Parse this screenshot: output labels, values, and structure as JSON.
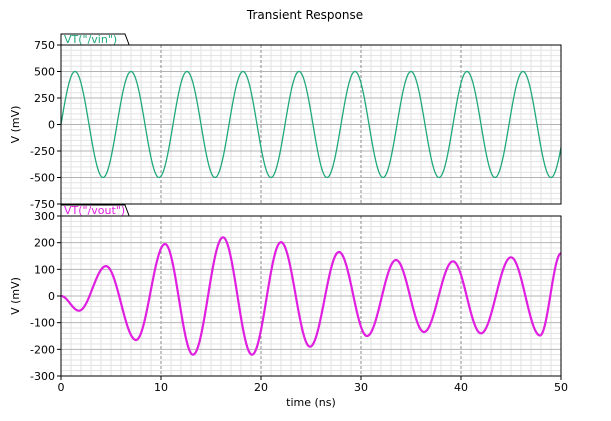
{
  "chart_data": {
    "type": "line",
    "title": "Transient Response",
    "xlabel": "time (ns)",
    "x_ticks": [
      "0",
      "10",
      "20",
      "30",
      "40",
      "50"
    ],
    "xlim": [
      0,
      50
    ],
    "grid": true,
    "panels": [
      {
        "ylabel": "V (mV)",
        "ylim": [
          -750,
          750
        ],
        "y_ticks": [
          "750",
          "500",
          "250",
          "0",
          "-250",
          "-500",
          "-750"
        ],
        "series": [
          {
            "name": "VT(\"/vin\")",
            "color": "#1fa97a",
            "kind": "sine",
            "amplitude_mV": 500,
            "period_ns": 5.6,
            "phase_start": 0,
            "dc_offset_mV": 0
          }
        ]
      },
      {
        "ylabel": "V (mV)",
        "ylim": [
          -300,
          300
        ],
        "y_ticks": [
          "300",
          "200",
          "100",
          "0",
          "-100",
          "-200",
          "-300"
        ],
        "series": [
          {
            "name": "VT(\"/vout\")",
            "color": "#e020e0",
            "kind": "sampled_sine",
            "period_ns": 5.9,
            "delay_ns": 1.5,
            "extrema": [
              {
                "t_ns": 0,
                "v_mV": 0
              },
              {
                "t_ns": 1.8,
                "v_mV": -55
              },
              {
                "t_ns": 4.5,
                "v_mV": 112
              },
              {
                "t_ns": 7.5,
                "v_mV": -165
              },
              {
                "t_ns": 10.4,
                "v_mV": 195
              },
              {
                "t_ns": 13.2,
                "v_mV": -220
              },
              {
                "t_ns": 16.2,
                "v_mV": 220
              },
              {
                "t_ns": 19.1,
                "v_mV": -220
              },
              {
                "t_ns": 22.0,
                "v_mV": 202
              },
              {
                "t_ns": 24.9,
                "v_mV": -190
              },
              {
                "t_ns": 27.8,
                "v_mV": 165
              },
              {
                "t_ns": 30.6,
                "v_mV": -150
              },
              {
                "t_ns": 33.5,
                "v_mV": 135
              },
              {
                "t_ns": 36.3,
                "v_mV": -135
              },
              {
                "t_ns": 39.2,
                "v_mV": 130
              },
              {
                "t_ns": 42.0,
                "v_mV": -140
              },
              {
                "t_ns": 45.0,
                "v_mV": 145
              },
              {
                "t_ns": 47.9,
                "v_mV": -148
              },
              {
                "t_ns": 50.0,
                "v_mV": 160
              }
            ]
          }
        ]
      }
    ]
  }
}
